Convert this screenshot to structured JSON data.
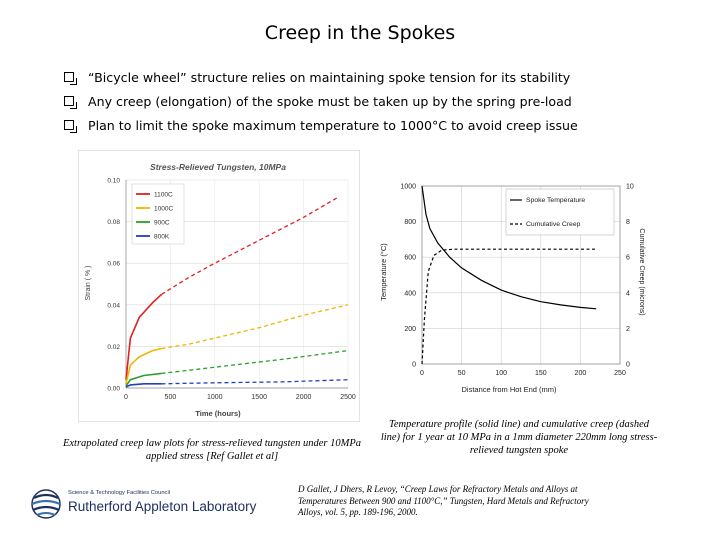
{
  "slide": {
    "title": "Creep in the Spokes",
    "bullets": [
      "“Bicycle wheel” structure relies on maintaining spoke tension for its stability",
      "Any creep (elongation) of the spoke must be taken up by the spring pre-load",
      "Plan to limit the spoke maximum temperature to 1000°C to avoid creep issue"
    ],
    "caption_left": "Extrapolated creep law plots for stress-relieved tungsten under 10MPa applied stress [Ref Gallet et al]",
    "caption_right": "Temperature profile (solid line) and cumulative creep (dashed line) for 1 year at 10 MPa in a 1mm diameter 220mm long stress-relieved tungsten spoke",
    "reference": "D Gallet, J Dhers, R Levoy, “Creep Laws for Refractory Metals and Alloys at Temperatures Between 900 and 1100°C,” Tungsten, Hard Metals and Refractory Alloys, vol. 5, pp. 189-196, 2000.",
    "logo": {
      "small": "Science & Technology Facilities Council",
      "big": "Rutherford Appleton Laboratory",
      "colors": {
        "dark": "#20305e",
        "accent": "#3a6fb0"
      }
    }
  },
  "chart_data": [
    {
      "type": "line",
      "title": "Stress-Relieved Tungsten, 10MPa",
      "xlabel": "Time (hours)",
      "ylabel": "Strain ( % )",
      "xlim": [
        0,
        2500
      ],
      "ylim": [
        0,
        0.1
      ],
      "x_ticks": [
        "0",
        "500",
        "1000",
        "1500",
        "2000",
        "2500"
      ],
      "y_ticks": [
        "0.00",
        "0.02",
        "0.04",
        "0.06",
        "0.08",
        "0.10"
      ],
      "legend_position": "top-left",
      "series": [
        {
          "name": "1100C",
          "color": "#e02020",
          "style": "solid-then-dashed",
          "solid_until": 400,
          "points": [
            [
              0,
              0.004
            ],
            [
              50,
              0.024
            ],
            [
              150,
              0.034
            ],
            [
              300,
              0.041
            ],
            [
              400,
              0.045
            ],
            [
              700,
              0.053
            ],
            [
              1000,
              0.06
            ],
            [
              1500,
              0.071
            ],
            [
              2000,
              0.082
            ],
            [
              2400,
              0.092
            ]
          ]
        },
        {
          "name": "1000C",
          "color": "#f0b400",
          "style": "solid-then-dashed",
          "solid_until": 400,
          "points": [
            [
              0,
              0.002
            ],
            [
              50,
              0.011
            ],
            [
              150,
              0.015
            ],
            [
              300,
              0.018
            ],
            [
              400,
              0.019
            ],
            [
              700,
              0.021
            ],
            [
              1000,
              0.024
            ],
            [
              1500,
              0.029
            ],
            [
              2000,
              0.035
            ],
            [
              2500,
              0.04
            ]
          ]
        },
        {
          "name": "900C",
          "color": "#2aa02a",
          "style": "solid-then-dashed",
          "solid_until": 400,
          "points": [
            [
              0,
              0.001
            ],
            [
              50,
              0.004
            ],
            [
              200,
              0.006
            ],
            [
              400,
              0.007
            ],
            [
              800,
              0.009
            ],
            [
              1200,
              0.011
            ],
            [
              1800,
              0.014
            ],
            [
              2500,
              0.018
            ]
          ]
        },
        {
          "name": "800K",
          "color": "#2040c0",
          "style": "solid-then-dashed",
          "solid_until": 400,
          "points": [
            [
              0,
              0.0005
            ],
            [
              50,
              0.0015
            ],
            [
              200,
              0.002
            ],
            [
              400,
              0.002
            ],
            [
              1000,
              0.0025
            ],
            [
              1800,
              0.003
            ],
            [
              2500,
              0.004
            ]
          ]
        }
      ]
    },
    {
      "type": "line",
      "xlabel": "Distance from Hot End (mm)",
      "ylabel": "Temperature (°C)",
      "ylabel_right": "Cumulative Creep (microns)",
      "xlim": [
        0,
        250
      ],
      "ylim": [
        0,
        1000
      ],
      "ylim_right": [
        0,
        10
      ],
      "x_ticks": [
        "0",
        "50",
        "100",
        "150",
        "200",
        "250"
      ],
      "y_ticks": [
        "0",
        "200",
        "400",
        "600",
        "800",
        "1000"
      ],
      "y_ticks_right": [
        "0",
        "2",
        "4",
        "6",
        "8",
        "10"
      ],
      "legend_position": "top-right",
      "series": [
        {
          "name": "Spoke Temperature",
          "axis": "left",
          "style": "solid",
          "color": "#000000",
          "points": [
            [
              0,
              1000
            ],
            [
              5,
              840
            ],
            [
              10,
              760
            ],
            [
              20,
              680
            ],
            [
              35,
              600
            ],
            [
              50,
              540
            ],
            [
              75,
              470
            ],
            [
              100,
              415
            ],
            [
              125,
              378
            ],
            [
              150,
              350
            ],
            [
              175,
              332
            ],
            [
              200,
              318
            ],
            [
              220,
              310
            ]
          ]
        },
        {
          "name": "Cumulative Creep",
          "axis": "right",
          "style": "dashed",
          "color": "#000000",
          "points": [
            [
              0,
              0
            ],
            [
              3,
              2.5
            ],
            [
              8,
              5.2
            ],
            [
              15,
              6.1
            ],
            [
              25,
              6.4
            ],
            [
              40,
              6.45
            ],
            [
              220,
              6.45
            ]
          ]
        }
      ]
    }
  ]
}
